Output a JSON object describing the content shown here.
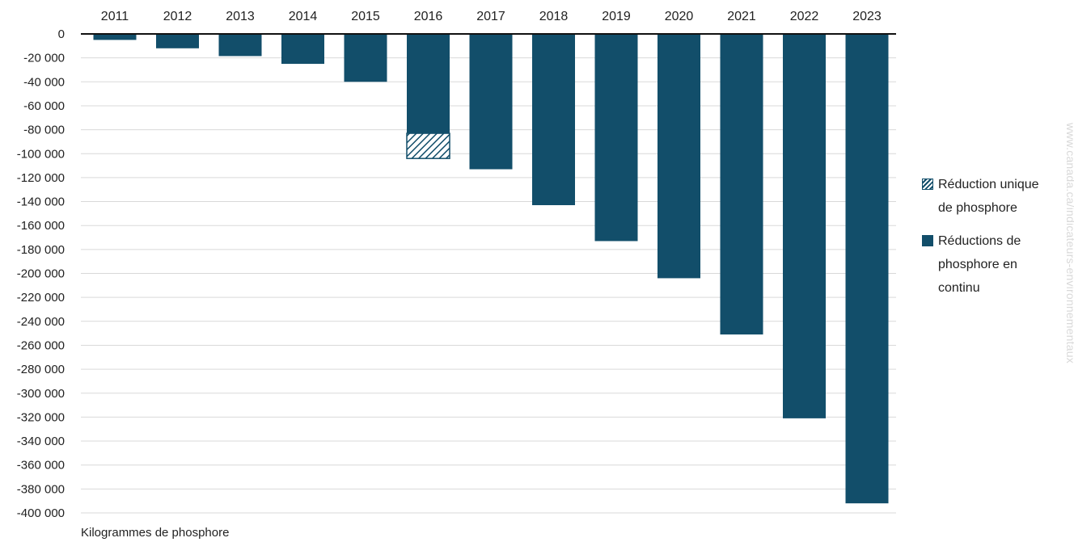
{
  "chart_data": {
    "type": "bar",
    "categories": [
      "2011",
      "2012",
      "2013",
      "2014",
      "2015",
      "2016",
      "2017",
      "2018",
      "2019",
      "2020",
      "2021",
      "2022",
      "2023"
    ],
    "series": [
      {
        "name": "Réductions de phosphore en continu",
        "color": "#124e6a",
        "values": [
          -5000,
          -12000,
          -18500,
          -25000,
          -40000,
          -83000,
          -113000,
          -143000,
          -173000,
          -204000,
          -251000,
          -321000,
          -392000
        ]
      },
      {
        "name": "Réduction unique de phosphore",
        "color": "#124e6a",
        "pattern": "hatch",
        "values": [
          0,
          0,
          0,
          0,
          0,
          -21000,
          0,
          0,
          0,
          0,
          0,
          0,
          0
        ]
      }
    ],
    "stacked": true,
    "ylabel": "Kilogrammes de phosphore",
    "ylim": [
      -400000,
      0
    ],
    "yticks": [
      "0",
      "-20 000",
      "-40 000",
      "-60 000",
      "-80 000",
      "-100 000",
      "-120 000",
      "-140 000",
      "-160 000",
      "-180 000",
      "-200 000",
      "-220 000",
      "-240 000",
      "-260 000",
      "-280 000",
      "-300 000",
      "-320 000",
      "-340 000",
      "-360 000",
      "-380 000",
      "-400 000"
    ],
    "x_axis_position": "top",
    "grid": true,
    "legend_position": "right"
  },
  "legend": {
    "items": [
      {
        "label": "Réduction unique de phosphore"
      },
      {
        "label": "Réductions de phosphore en continu"
      }
    ]
  },
  "watermark": "www.canada.ca/indicateurs-environnementaux"
}
